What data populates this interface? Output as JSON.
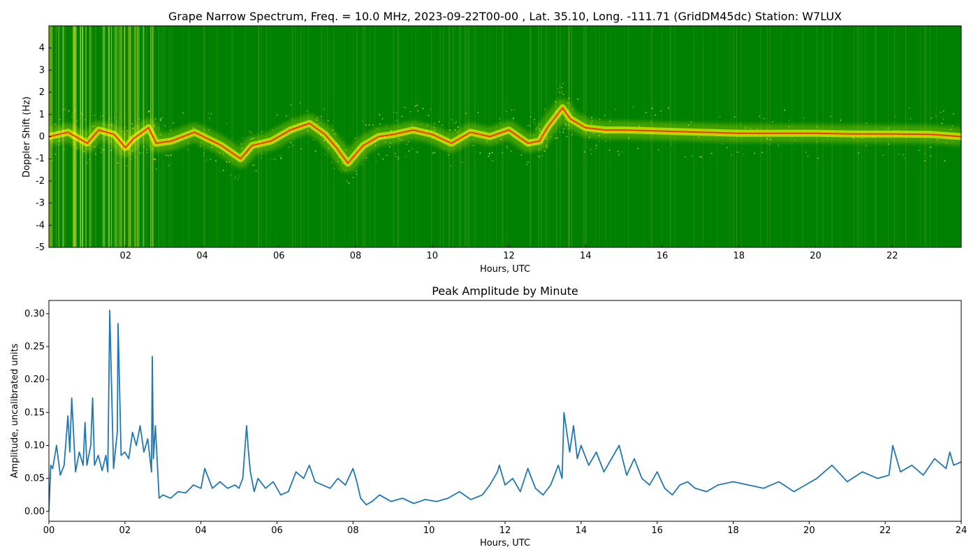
{
  "chart_data": [
    {
      "type": "heatmap",
      "title": "Grape Narrow Spectrum, Freq. = 10.0 MHz, 2023-09-22T00-00 , Lat.  35.10, Long. -111.71 (GridDM45dc) Station: W7LUX",
      "xlabel": "Hours, UTC",
      "ylabel": "Doppler Shift (Hz)",
      "xlim": [
        0,
        23.8
      ],
      "ylim": [
        -5,
        5
      ],
      "x_ticks": [
        "02",
        "04",
        "06",
        "08",
        "10",
        "12",
        "14",
        "16",
        "18",
        "20",
        "22"
      ],
      "x_tick_values": [
        2,
        4,
        6,
        8,
        10,
        12,
        14,
        16,
        18,
        20,
        22
      ],
      "y_ticks": [
        "-5",
        "-4",
        "-3",
        "-2",
        "-1",
        "0",
        "1",
        "2",
        "3",
        "4"
      ],
      "y_tick_values": [
        -5,
        -4,
        -3,
        -2,
        -1,
        0,
        1,
        2,
        3,
        4
      ],
      "colors": {
        "background": "#008000",
        "mid": "#ffff00",
        "peak": "#ff2000"
      },
      "doppler_trace": {
        "hours": [
          0,
          0.5,
          1,
          1.3,
          1.7,
          2.0,
          2.2,
          2.6,
          2.8,
          3.2,
          3.8,
          4.5,
          5.0,
          5.3,
          5.8,
          6.3,
          6.8,
          7.2,
          7.5,
          7.8,
          8.2,
          8.6,
          9.0,
          9.5,
          10.0,
          10.5,
          11.0,
          11.5,
          12.0,
          12.5,
          12.8,
          13.0,
          13.4,
          13.6,
          14.0,
          14.5,
          15,
          16,
          17,
          18,
          19,
          20,
          21,
          22,
          23,
          23.8
        ],
        "doppler_hz": [
          0,
          0.2,
          -0.3,
          0.3,
          0.1,
          -0.5,
          -0.1,
          0.4,
          -0.3,
          -0.2,
          0.2,
          -0.4,
          -1.0,
          -0.4,
          -0.2,
          0.3,
          0.6,
          0.1,
          -0.5,
          -1.2,
          -0.4,
          0.0,
          0.1,
          0.3,
          0.1,
          -0.3,
          0.2,
          0.0,
          0.3,
          -0.3,
          -0.2,
          0.4,
          1.3,
          0.8,
          0.4,
          0.3,
          0.3,
          0.25,
          0.2,
          0.15,
          0.15,
          0.15,
          0.12,
          0.12,
          0.1,
          0.0
        ]
      }
    },
    {
      "type": "line",
      "title": "Peak Amplitude by Minute",
      "xlabel": "Hours, UTC",
      "ylabel": "Amplitude, uncalibrated units",
      "xlim": [
        0,
        24
      ],
      "ylim": [
        -0.015,
        0.32
      ],
      "x_ticks": [
        "00",
        "02",
        "04",
        "06",
        "08",
        "10",
        "12",
        "14",
        "16",
        "18",
        "20",
        "22",
        "24"
      ],
      "x_tick_values": [
        0,
        2,
        4,
        6,
        8,
        10,
        12,
        14,
        16,
        18,
        20,
        22,
        24
      ],
      "y_ticks": [
        "0.00",
        "0.05",
        "0.10",
        "0.15",
        "0.20",
        "0.25",
        "0.30"
      ],
      "y_tick_values": [
        0,
        0.05,
        0.1,
        0.15,
        0.2,
        0.25,
        0.3
      ],
      "line_color": "#1f77b4",
      "series": [
        {
          "x": [
            0.0,
            0.05,
            0.1,
            0.2,
            0.3,
            0.4,
            0.5,
            0.55,
            0.6,
            0.7,
            0.8,
            0.9,
            0.95,
            1.0,
            1.1,
            1.15,
            1.2,
            1.3,
            1.4,
            1.5,
            1.55,
            1.6,
            1.7,
            1.8,
            1.82,
            1.9,
            2.0,
            2.1,
            2.2,
            2.3,
            2.4,
            2.5,
            2.6,
            2.7,
            2.72,
            2.75,
            2.8,
            2.9,
            3.0,
            3.2,
            3.4,
            3.6,
            3.8,
            4.0,
            4.1,
            4.3,
            4.5,
            4.7,
            4.9,
            5.0,
            5.1,
            5.2,
            5.25,
            5.3,
            5.4,
            5.5,
            5.7,
            5.9,
            6.1,
            6.3,
            6.5,
            6.7,
            6.85,
            7.0,
            7.2,
            7.4,
            7.6,
            7.8,
            8.0,
            8.1,
            8.2,
            8.35,
            8.5,
            8.7,
            9.0,
            9.3,
            9.6,
            9.9,
            10.2,
            10.5,
            10.8,
            11.1,
            11.4,
            11.6,
            11.8,
            11.85,
            12.0,
            12.2,
            12.4,
            12.6,
            12.8,
            13.0,
            13.2,
            13.4,
            13.5,
            13.55,
            13.7,
            13.8,
            13.9,
            14.0,
            14.2,
            14.4,
            14.6,
            14.8,
            15.0,
            15.2,
            15.4,
            15.6,
            15.8,
            16.0,
            16.2,
            16.4,
            16.6,
            16.8,
            17.0,
            17.3,
            17.6,
            18.0,
            18.4,
            18.8,
            19.2,
            19.6,
            19.9,
            20.2,
            20.6,
            21.0,
            21.4,
            21.8,
            22.1,
            22.2,
            22.4,
            22.7,
            23.0,
            23.3,
            23.6,
            23.7,
            23.8,
            24.0
          ],
          "values": [
            0.0,
            0.07,
            0.065,
            0.1,
            0.055,
            0.07,
            0.145,
            0.09,
            0.172,
            0.06,
            0.09,
            0.07,
            0.135,
            0.07,
            0.1,
            0.172,
            0.07,
            0.085,
            0.062,
            0.085,
            0.06,
            0.305,
            0.065,
            0.12,
            0.285,
            0.085,
            0.09,
            0.08,
            0.12,
            0.1,
            0.13,
            0.09,
            0.11,
            0.06,
            0.235,
            0.08,
            0.13,
            0.02,
            0.025,
            0.02,
            0.03,
            0.028,
            0.04,
            0.035,
            0.065,
            0.035,
            0.045,
            0.035,
            0.04,
            0.035,
            0.05,
            0.13,
            0.09,
            0.06,
            0.03,
            0.05,
            0.035,
            0.045,
            0.025,
            0.03,
            0.06,
            0.05,
            0.07,
            0.045,
            0.04,
            0.035,
            0.05,
            0.04,
            0.065,
            0.045,
            0.02,
            0.01,
            0.015,
            0.025,
            0.015,
            0.02,
            0.012,
            0.018,
            0.015,
            0.02,
            0.03,
            0.018,
            0.025,
            0.04,
            0.06,
            0.07,
            0.04,
            0.05,
            0.03,
            0.065,
            0.035,
            0.025,
            0.04,
            0.07,
            0.05,
            0.15,
            0.09,
            0.13,
            0.08,
            0.1,
            0.07,
            0.09,
            0.06,
            0.08,
            0.1,
            0.055,
            0.08,
            0.05,
            0.04,
            0.06,
            0.035,
            0.025,
            0.04,
            0.045,
            0.035,
            0.03,
            0.04,
            0.045,
            0.04,
            0.035,
            0.045,
            0.03,
            0.04,
            0.05,
            0.07,
            0.045,
            0.06,
            0.05,
            0.055,
            0.1,
            0.06,
            0.07,
            0.055,
            0.08,
            0.065,
            0.09,
            0.07,
            0.075
          ]
        }
      ]
    }
  ]
}
